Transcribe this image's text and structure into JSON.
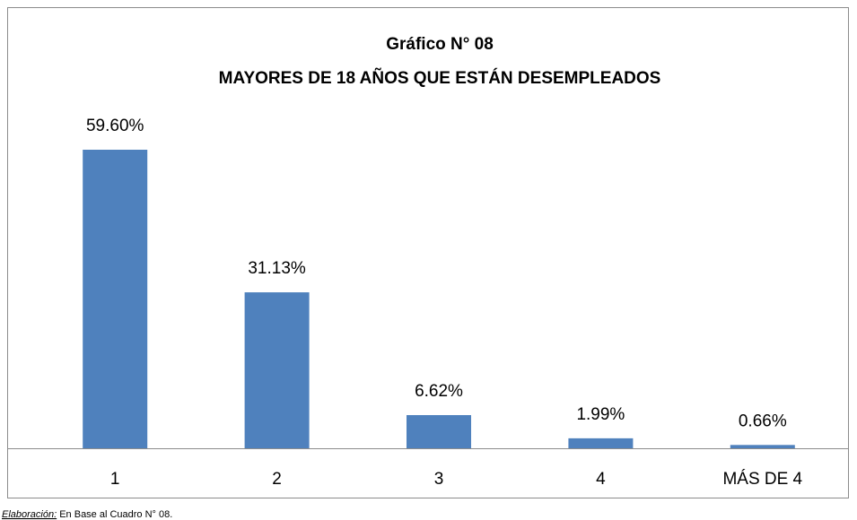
{
  "chart_data": {
    "type": "bar",
    "title": "Gráfico N° 08",
    "subtitle": "MAYORES DE 18 AÑOS QUE ESTÁN DESEMPLEADOS",
    "categories": [
      "1",
      "2",
      "3",
      "4",
      "MÁS DE 4"
    ],
    "values": [
      59.6,
      31.13,
      6.62,
      1.99,
      0.66
    ],
    "value_labels": [
      "59.60%",
      "31.13%",
      "6.62%",
      "1.99%",
      "0.66%"
    ],
    "color": "#4f81bd",
    "note_label": "Elaboración:",
    "note": "En Base al Cuadro N° 08."
  }
}
